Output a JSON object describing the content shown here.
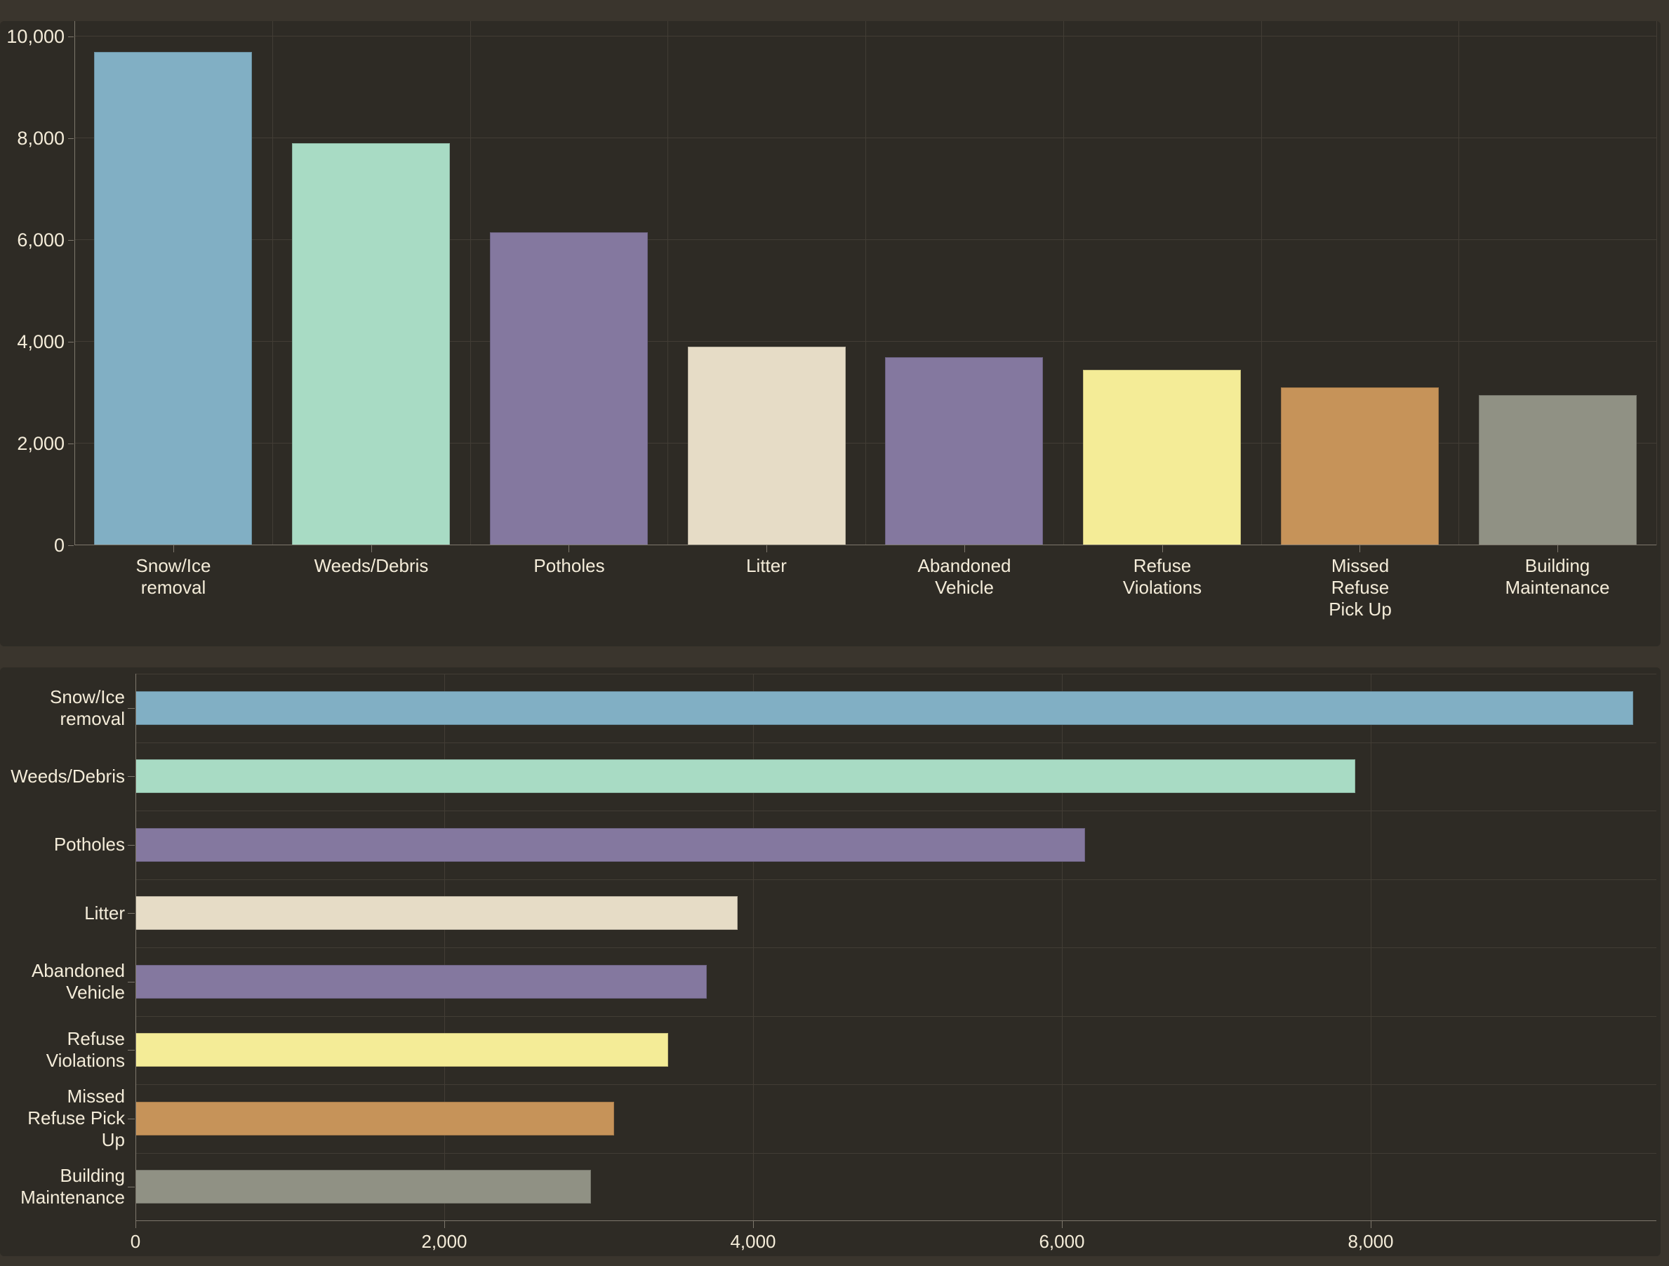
{
  "page": {
    "background": "#3a352d",
    "panel_background": "#2e2b25",
    "text_color": "#f4ecd9",
    "gridline_color": "#423d35",
    "axis_color": "#7d776c"
  },
  "chart_data": [
    {
      "type": "bar",
      "orientation": "vertical",
      "title": "",
      "xlabel": "",
      "ylabel": "",
      "grid": true,
      "legend": false,
      "categories": [
        "Snow/Ice removal",
        "Weeds/Debris",
        "Potholes",
        "Litter",
        "Abandoned Vehicle",
        "Refuse Violations",
        "Missed Refuse Pick Up",
        "Building Maintenance"
      ],
      "category_labels_wrapped": [
        "Snow/Ice\nremoval",
        "Weeds/Debris",
        "Potholes",
        "Litter",
        "Abandoned\nVehicle",
        "Refuse\nViolations",
        "Missed\nRefuse\nPick Up",
        "Building\nMaintenance"
      ],
      "values": [
        9700,
        7900,
        6150,
        3900,
        3700,
        3450,
        3100,
        2950
      ],
      "bar_colors": [
        "#81afc4",
        "#a8dbc4",
        "#84789f",
        "#e6dcc6",
        "#84789f",
        "#f4ec97",
        "#c69359",
        "#909184"
      ],
      "y_ticks": [
        "0",
        "2,000",
        "4,000",
        "6,000",
        "8,000",
        "10,000"
      ],
      "y_tick_values": [
        0,
        2000,
        4000,
        6000,
        8000,
        10000
      ],
      "ylim": [
        0,
        10300
      ]
    },
    {
      "type": "bar",
      "orientation": "horizontal",
      "title": "",
      "xlabel": "",
      "ylabel": "",
      "grid": true,
      "legend": false,
      "categories": [
        "Snow/Ice removal",
        "Weeds/Debris",
        "Potholes",
        "Litter",
        "Abandoned Vehicle",
        "Refuse Violations",
        "Missed Refuse Pick Up",
        "Building Maintenance"
      ],
      "category_labels_wrapped": [
        "Snow/Ice\nremoval",
        "Weeds/Debris",
        "Potholes",
        "Litter",
        "Abandoned\nVehicle",
        "Refuse\nViolations",
        "Missed\nRefuse Pick\nUp",
        "Building\nMaintenance"
      ],
      "values": [
        9700,
        7900,
        6150,
        3900,
        3700,
        3450,
        3100,
        2950
      ],
      "bar_colors": [
        "#81afc4",
        "#a8dbc4",
        "#84789f",
        "#e6dcc6",
        "#84789f",
        "#f4ec97",
        "#c69359",
        "#909184"
      ],
      "x_ticks": [
        "0",
        "2,000",
        "4,000",
        "6,000",
        "8,000"
      ],
      "x_tick_values": [
        0,
        2000,
        4000,
        6000,
        8000
      ],
      "xlim": [
        0,
        9850
      ]
    }
  ]
}
